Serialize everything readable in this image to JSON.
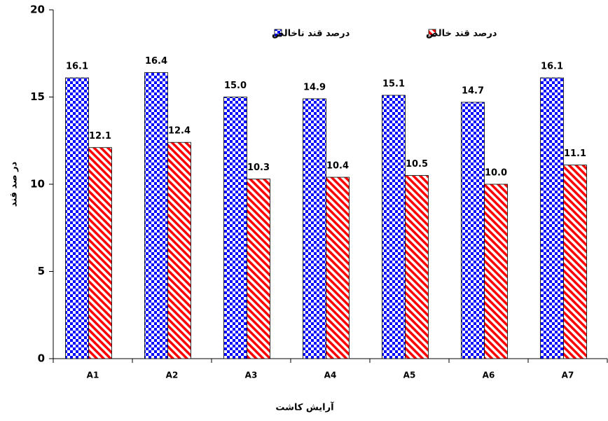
{
  "chart_data": {
    "type": "bar",
    "x_label": "آرایش کاشت",
    "y_label": "در صد قند",
    "categories": [
      "A1",
      "A2",
      "A3",
      "A4",
      "A5",
      "A6",
      "A7"
    ],
    "series": [
      {
        "name": "درصد قند ناخالص",
        "color": "#0000ff",
        "values": [
          16.1,
          16.4,
          15.0,
          14.9,
          15.1,
          14.7,
          16.1
        ],
        "value_labels": [
          "16.1",
          "16.4",
          "15.0",
          "14.9",
          "15.1",
          "14.7",
          "16.1"
        ]
      },
      {
        "name": "درصد قند خالص",
        "color": "#ff0000",
        "values": [
          12.1,
          12.4,
          10.3,
          10.4,
          10.5,
          10.0,
          11.1
        ],
        "value_labels": [
          "12.1",
          "12.4",
          "10.3",
          "10.4",
          "10.5",
          "10.0",
          "11.1"
        ]
      }
    ],
    "ylim": [
      0,
      20
    ],
    "yticks": [
      0,
      5,
      10,
      15,
      20
    ],
    "grid": false,
    "legend": "top"
  }
}
